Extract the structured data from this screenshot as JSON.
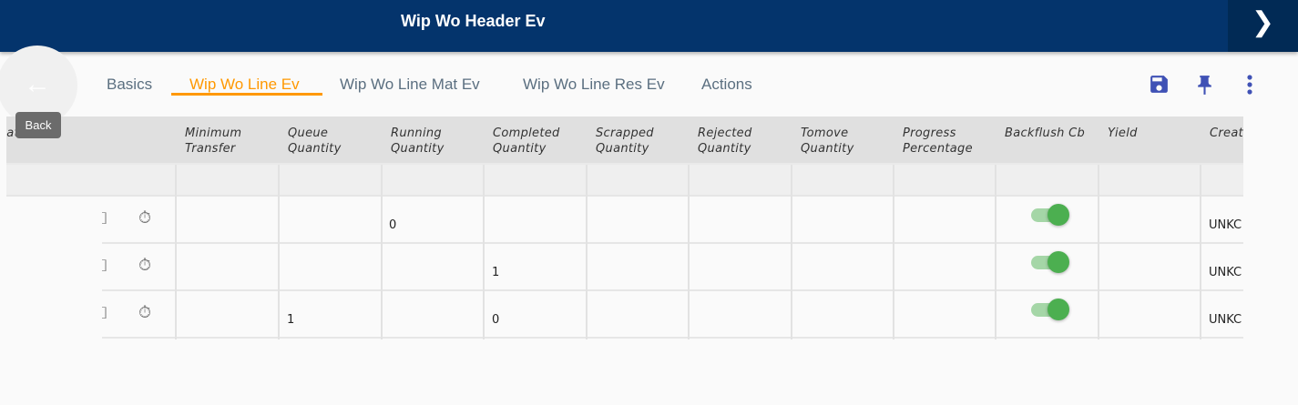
{
  "header": {
    "title": "Wip Wo Header Ev",
    "next_icon": "chevron-right-icon"
  },
  "back": {
    "tooltip": "Back",
    "icon": "arrow-left-icon"
  },
  "tabs": [
    {
      "label": "Basics"
    },
    {
      "label": "Wip Wo Line Ev",
      "active": true
    },
    {
      "label": "Wip Wo Line Mat Ev"
    },
    {
      "label": "Wip Wo Line Res Ev"
    },
    {
      "label": "Actions"
    }
  ],
  "toolbar": {
    "icons": [
      "save-icon",
      "pin-icon",
      "more-vert-icon"
    ],
    "accent": "#3f51b5"
  },
  "table": {
    "partial_first_header": "Date",
    "columns": [
      "Minimum Transfer",
      "Queue Quantity",
      "Running Quantity",
      "Completed Quantity",
      "Scrapped Quantity",
      "Rejected Quantity",
      "Tomove Quantity",
      "Progress Percentage",
      "Backflush Cb",
      "Yield",
      "Creat"
    ],
    "rows": [
      {
        "queue": "",
        "running": "0",
        "completed": "",
        "backflush": true,
        "created": "UNKC"
      },
      {
        "queue": "",
        "running": "",
        "completed": "1",
        "backflush": true,
        "created": "UNKC"
      },
      {
        "queue": "1",
        "running": "",
        "completed": "0",
        "backflush": true,
        "created": "UNKC"
      }
    ]
  }
}
